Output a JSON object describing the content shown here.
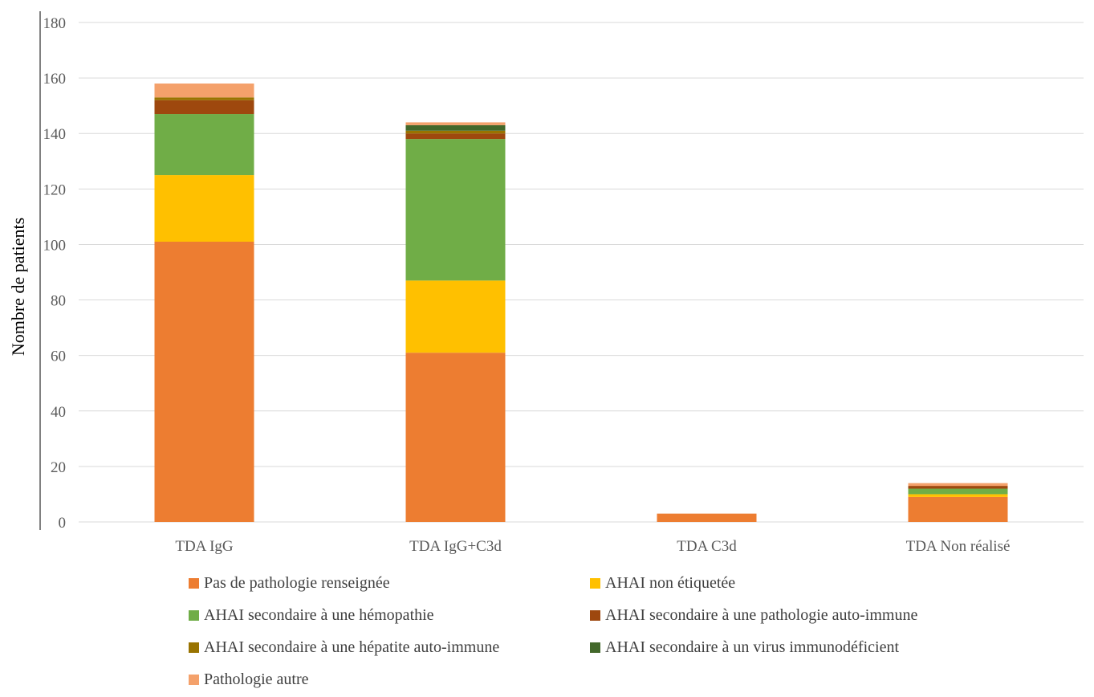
{
  "chart_data": {
    "type": "bar",
    "stacked": true,
    "title": "",
    "xlabel": "",
    "ylabel": "Nombre de patients",
    "ylim": [
      0,
      180
    ],
    "yticks": [
      0,
      20,
      40,
      60,
      80,
      100,
      120,
      140,
      160,
      180
    ],
    "grid": true,
    "legend_position": "bottom",
    "categories": [
      "TDA IgG",
      "TDA IgG+C3d",
      "TDA C3d",
      "TDA Non réalisé"
    ],
    "series": [
      {
        "name": "Pas de pathologie renseignée",
        "color": "#ED7D31",
        "values": [
          101,
          61,
          3,
          9
        ]
      },
      {
        "name": "AHAI non étiquetée",
        "color": "#FFC000",
        "values": [
          24,
          26,
          0,
          1
        ]
      },
      {
        "name": "AHAI secondaire à une hémopathie",
        "color": "#70AD47",
        "values": [
          22,
          51,
          0,
          2
        ]
      },
      {
        "name": "AHAI secondaire à une pathologie auto-immune",
        "color": "#9E480E",
        "values": [
          5,
          2,
          0,
          1
        ]
      },
      {
        "name": "AHAI secondaire à une hépatite auto-immune",
        "color": "#997300",
        "values": [
          1,
          1,
          0,
          0
        ]
      },
      {
        "name": "AHAI secondaire à un virus immunodéficient",
        "color": "#43682B",
        "values": [
          0,
          2,
          0,
          0
        ]
      },
      {
        "name": "Pathologie autre",
        "color": "#F4A16B",
        "values": [
          5,
          1,
          0,
          1
        ]
      }
    ]
  }
}
